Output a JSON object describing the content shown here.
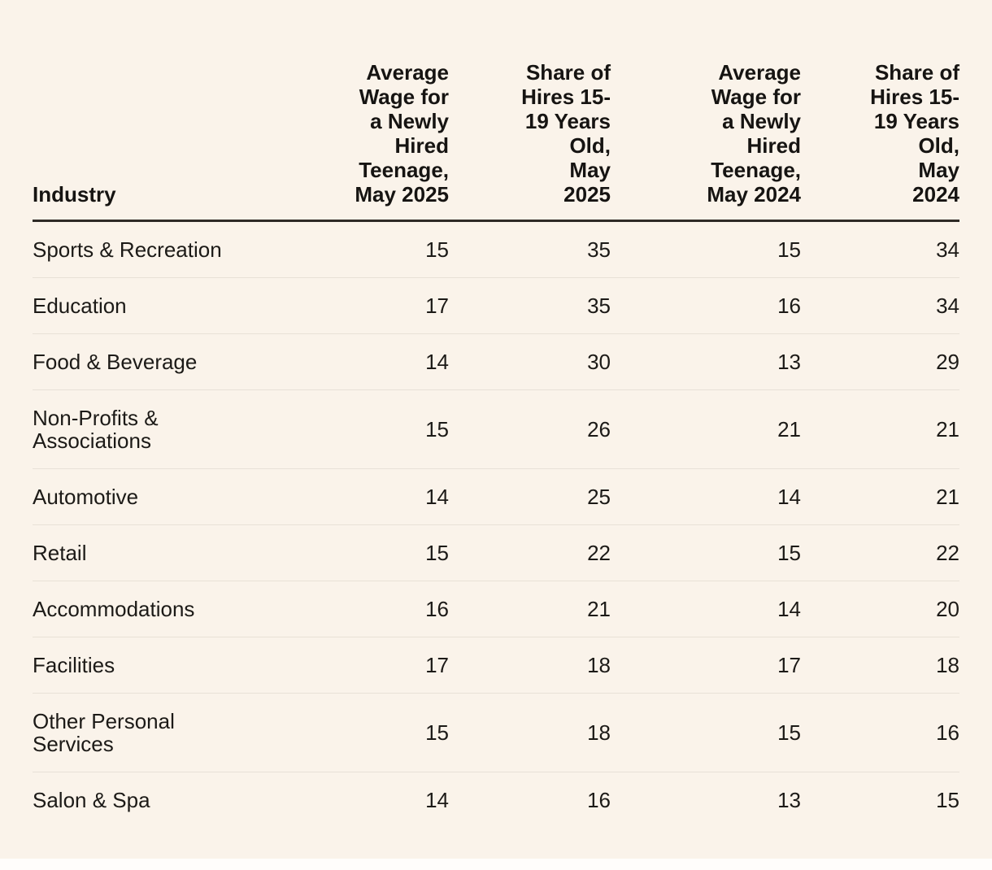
{
  "page": {
    "background_color": "#FAF3EA",
    "bottom_strip_color": "#FFFDFB",
    "header_rule_color": "#2E2A26",
    "divider_color": "#E8E1D7",
    "text_color": "#1C1A17"
  },
  "chart_data": {
    "type": "table",
    "title": "",
    "columns": [
      {
        "label": "Industry",
        "align": "left"
      },
      {
        "label": "Average\nWage for\na Newly\nHired\nTeenage,\nMay 2025",
        "align": "right"
      },
      {
        "label": "Share of\nHires 15-\n19 Years\nOld,\nMay\n2025",
        "align": "right"
      },
      {
        "label": "Average\nWage for\na Newly\nHired\nTeenage,\nMay 2024",
        "align": "right"
      },
      {
        "label": "Share of\nHires 15-\n19 Years\nOld,\nMay\n2024",
        "align": "right"
      }
    ],
    "rows": [
      {
        "industry": "Sports & Recreation",
        "values": [
          "15",
          "35",
          "15",
          "34"
        ]
      },
      {
        "industry": "Education",
        "values": [
          "17",
          "35",
          "16",
          "34"
        ]
      },
      {
        "industry": "Food & Beverage",
        "values": [
          "14",
          "30",
          "13",
          "29"
        ]
      },
      {
        "industry": "Non-Profits & Associations",
        "values": [
          "15",
          "26",
          "21",
          "21"
        ]
      },
      {
        "industry": "Automotive",
        "values": [
          "14",
          "25",
          "14",
          "21"
        ]
      },
      {
        "industry": "Retail",
        "values": [
          "15",
          "22",
          "15",
          "22"
        ]
      },
      {
        "industry": "Accommodations",
        "values": [
          "16",
          "21",
          "14",
          "20"
        ]
      },
      {
        "industry": "Facilities",
        "values": [
          "17",
          "18",
          "17",
          "18"
        ]
      },
      {
        "industry": "Other Personal Services",
        "values": [
          "15",
          "18",
          "15",
          "16"
        ]
      },
      {
        "industry": "Salon & Spa",
        "values": [
          "14",
          "16",
          "13",
          "15"
        ]
      }
    ]
  }
}
